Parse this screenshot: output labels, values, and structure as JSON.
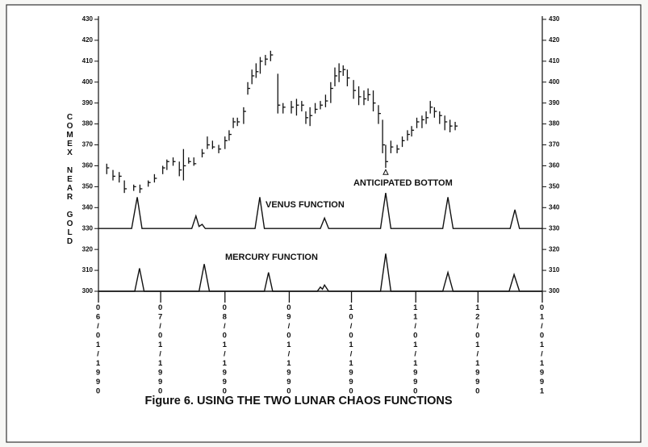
{
  "chart_data": {
    "type": "ohlc",
    "title": "Figure 6. USING THE TWO LUNAR CHAOS FUNCTIONS",
    "y_label": "COMEX NEAR GOLD",
    "annotation": "ANTICIPATED BOTTOM",
    "annotation_x": 138.5,
    "annotation_y": 357,
    "xlim": [
      0,
      214
    ],
    "xticks": [
      {
        "value": 0,
        "label": "06/01/1990"
      },
      {
        "value": 30,
        "label": "07/01/1990"
      },
      {
        "value": 61,
        "label": "08/01/1990"
      },
      {
        "value": 92,
        "label": "09/01/1990"
      },
      {
        "value": 122,
        "label": "10/01/1990"
      },
      {
        "value": 153,
        "label": "11/01/1990"
      },
      {
        "value": 183,
        "label": "12/01/1990"
      },
      {
        "value": 214,
        "label": "01/01/1991"
      }
    ],
    "ylim": [
      300,
      430
    ],
    "yticks": [
      300,
      310,
      320,
      330,
      340,
      350,
      360,
      370,
      380,
      390,
      400,
      410,
      420,
      430
    ],
    "y2lim": [
      300,
      430
    ],
    "y2ticks": [
      300,
      310,
      320,
      330,
      340,
      350,
      360,
      370,
      380,
      390,
      400,
      410,
      420,
      430
    ],
    "color": "#111111",
    "x": [
      4,
      7,
      10,
      12.5,
      17,
      20,
      24,
      27,
      31,
      33,
      36,
      39,
      41,
      43.5,
      46,
      50,
      52.5,
      55,
      58,
      61,
      63,
      65,
      67,
      70,
      72,
      74,
      76,
      78,
      80.5,
      83,
      86.5,
      89,
      93,
      95.5,
      98,
      100,
      102,
      104.5,
      107,
      109.5,
      112,
      114,
      116,
      118,
      120,
      123,
      125.5,
      128,
      130,
      132.5,
      135,
      137,
      138.5,
      141,
      144,
      146.5,
      149,
      151,
      153.5,
      156,
      158,
      160,
      162,
      164.5,
      167,
      169.5,
      172
    ],
    "high": [
      361,
      358,
      357,
      353,
      351,
      351,
      353,
      356,
      360,
      363,
      364,
      362,
      368,
      364,
      364,
      368,
      374,
      372,
      370,
      374,
      377,
      383,
      383,
      388,
      400,
      406,
      409,
      412,
      413,
      415,
      404,
      390,
      391,
      392,
      391,
      386,
      388,
      390,
      391,
      394,
      400,
      407,
      409,
      408,
      406,
      401,
      398,
      396,
      397,
      396,
      389,
      382,
      370,
      372,
      370,
      374,
      377,
      379,
      383,
      384,
      386,
      391,
      388,
      386,
      384,
      382,
      381
    ],
    "low": [
      356,
      353,
      352,
      347,
      348,
      347,
      350,
      352,
      356,
      358,
      360,
      355,
      353,
      361,
      360,
      364,
      368,
      368,
      366,
      368,
      372,
      378,
      379,
      380,
      394,
      399,
      402,
      404,
      408,
      410,
      385,
      385,
      385,
      384,
      386,
      380,
      379,
      385,
      387,
      388,
      390,
      398,
      400,
      403,
      398,
      392,
      389,
      389,
      391,
      386,
      380,
      366,
      359,
      366,
      366,
      369,
      372,
      374,
      378,
      378,
      380,
      385,
      383,
      380,
      377,
      376,
      377
    ],
    "close": [
      359,
      355,
      355,
      349,
      350,
      349,
      352,
      354,
      359,
      362,
      362,
      358,
      360,
      362,
      361,
      366,
      370,
      369,
      368,
      372,
      375,
      381,
      381,
      386,
      397,
      403,
      405,
      410,
      411,
      413,
      389,
      388,
      388,
      389,
      389,
      383,
      384,
      387,
      389,
      391,
      397,
      403,
      405,
      406,
      402,
      396,
      393,
      392,
      394,
      390,
      385,
      370,
      362,
      369,
      368,
      372,
      375,
      377,
      381,
      382,
      383,
      388,
      386,
      384,
      381,
      379,
      379
    ],
    "series": [
      {
        "name": "VENUS FUNCTION",
        "color": "#111111",
        "x": [
          0,
          16,
          18.7,
          21,
          45,
          47,
          48.5,
          50,
          51.5,
          75.5,
          77.8,
          80,
          107,
          109,
          111,
          136,
          138.5,
          141,
          166,
          168.5,
          171,
          198.5,
          200.8,
          203,
          214
        ],
        "values": [
          330,
          330,
          345,
          330,
          330,
          336,
          331,
          332,
          330,
          330,
          345,
          330,
          330,
          335,
          330,
          330,
          347,
          330,
          330,
          345,
          330,
          330,
          339,
          330,
          330
        ]
      },
      {
        "name": "MERCURY FUNCTION",
        "color": "#111111",
        "x": [
          0,
          17.5,
          19.8,
          22,
          48.5,
          51,
          53.5,
          80,
          82,
          84,
          105.5,
          107,
          108,
          109,
          111,
          136,
          138.5,
          141,
          166,
          168.5,
          171,
          198,
          200.4,
          203,
          214
        ],
        "values": [
          300,
          300,
          311,
          300,
          300,
          313,
          300,
          300,
          309,
          300,
          300,
          302,
          301,
          303,
          300,
          300,
          318,
          300,
          300,
          309,
          300,
          300,
          308,
          300,
          300
        ]
      }
    ]
  }
}
